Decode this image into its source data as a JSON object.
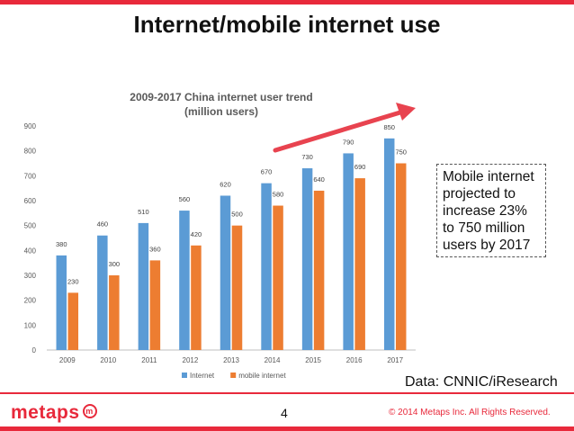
{
  "slide": {
    "title": "Internet/mobile internet use",
    "callout": "Mobile internet projected to increase 23% to 750 million users by 2017",
    "source": "Data: CNNIC/iResearch",
    "logo": "metaps",
    "logo_mark": "m",
    "page_number": "4",
    "copyright": "© 2014 Metaps Inc. All Rights Reserved."
  },
  "colors": {
    "brand": "#e8293b",
    "internet": "#5b9bd5",
    "mobile": "#ed7d31",
    "arrow": "#e8434f"
  },
  "chart_data": {
    "type": "bar",
    "title": "2009-2017 China internet user trend",
    "subtitle": "(million users)",
    "categories": [
      "2009",
      "2010",
      "2011",
      "2012",
      "2013",
      "2014",
      "2015",
      "2016",
      "2017"
    ],
    "series": [
      {
        "name": "Internet",
        "values": [
          380,
          460,
          510,
          560,
          620,
          670,
          730,
          790,
          850
        ]
      },
      {
        "name": "mobile internet",
        "values": [
          230,
          300,
          360,
          420,
          500,
          580,
          640,
          690,
          750
        ]
      }
    ],
    "yticks": [
      0,
      100,
      200,
      300,
      400,
      500,
      600,
      700,
      800,
      900
    ],
    "ylim": [
      0,
      900
    ],
    "grid": false,
    "legend": "bottom",
    "data_labels": true,
    "annotation": "upward-trend-arrow"
  }
}
